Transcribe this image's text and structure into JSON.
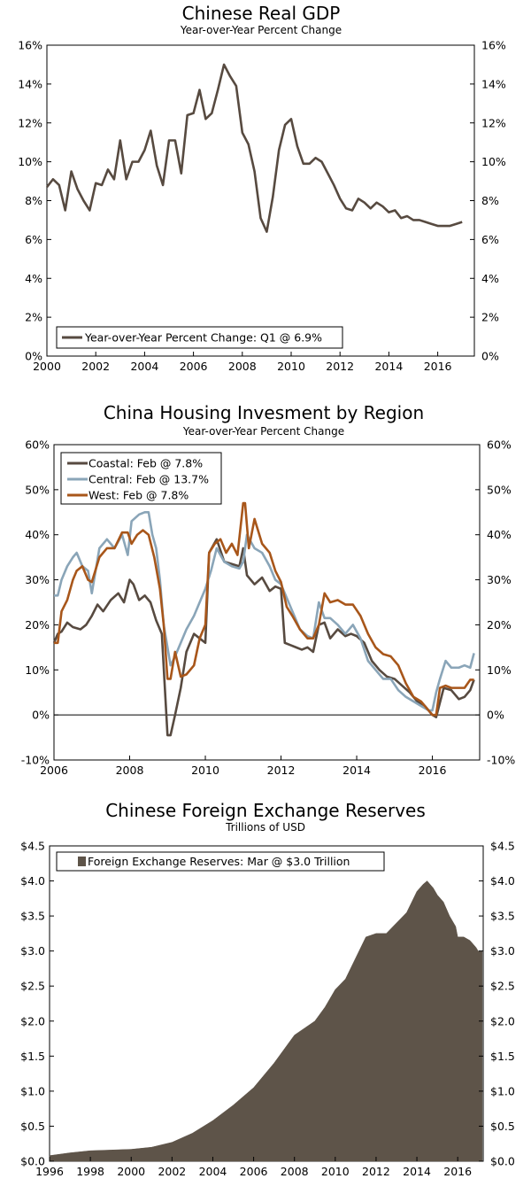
{
  "colors": {
    "coastal": "#574a40",
    "central": "#8aa5b8",
    "west": "#a8561a",
    "gdp": "#574a40",
    "reserves": "#5e5449"
  },
  "chart_data": [
    {
      "type": "line",
      "title": "Chinese Real GDP",
      "subtitle": "Year-over-Year Percent Change",
      "xlim": [
        2000,
        2017.5
      ],
      "ylim": [
        0,
        16
      ],
      "x_ticks": [
        2000,
        2002,
        2004,
        2006,
        2008,
        2010,
        2012,
        2014,
        2016
      ],
      "x_tick_labels": [
        "2000",
        "2002",
        "2004",
        "2006",
        "2008",
        "2010",
        "2012",
        "2014",
        "2016"
      ],
      "y_ticks": [
        0,
        2,
        4,
        6,
        8,
        10,
        12,
        14,
        16
      ],
      "y_tick_labels": [
        "0%",
        "2%",
        "4%",
        "6%",
        "8%",
        "10%",
        "12%",
        "14%",
        "16%"
      ],
      "legend_position": "bottom-left",
      "series": [
        {
          "name": "Year-over-Year Percent Change: Q1 @ 6.9%",
          "color_key": "gdp",
          "x": [
            2000.0,
            2000.25,
            2000.5,
            2000.75,
            2001.0,
            2001.25,
            2001.5,
            2001.75,
            2002.0,
            2002.25,
            2002.5,
            2002.75,
            2003.0,
            2003.25,
            2003.5,
            2003.75,
            2004.0,
            2004.25,
            2004.5,
            2004.75,
            2005.0,
            2005.25,
            2005.5,
            2005.75,
            2006.0,
            2006.25,
            2006.5,
            2006.75,
            2007.0,
            2007.25,
            2007.5,
            2007.75,
            2008.0,
            2008.25,
            2008.5,
            2008.75,
            2009.0,
            2009.25,
            2009.5,
            2009.75,
            2010.0,
            2010.25,
            2010.5,
            2010.75,
            2011.0,
            2011.25,
            2011.5,
            2011.75,
            2012.0,
            2012.25,
            2012.5,
            2012.75,
            2013.0,
            2013.25,
            2013.5,
            2013.75,
            2014.0,
            2014.25,
            2014.5,
            2014.75,
            2015.0,
            2015.25,
            2015.5,
            2015.75,
            2016.0,
            2016.25,
            2016.5,
            2016.75,
            2017.0
          ],
          "values": [
            8.7,
            9.1,
            8.8,
            7.5,
            9.5,
            8.6,
            8.0,
            7.5,
            8.9,
            8.8,
            9.6,
            9.1,
            11.1,
            9.1,
            10.0,
            10.0,
            10.6,
            11.6,
            9.8,
            8.8,
            11.1,
            11.1,
            9.4,
            12.4,
            12.5,
            13.7,
            12.2,
            12.5,
            13.7,
            15.0,
            14.4,
            13.9,
            11.5,
            10.9,
            9.5,
            7.1,
            6.4,
            8.2,
            10.6,
            11.9,
            12.2,
            10.8,
            9.9,
            9.9,
            10.2,
            10.0,
            9.4,
            8.8,
            8.1,
            7.6,
            7.5,
            8.1,
            7.9,
            7.6,
            7.9,
            7.7,
            7.4,
            7.5,
            7.1,
            7.2,
            7.0,
            7.0,
            6.9,
            6.8,
            6.7,
            6.7,
            6.7,
            6.8,
            6.9
          ]
        }
      ]
    },
    {
      "type": "line",
      "title": "China Housing Invesment by Region",
      "subtitle": "Year-over-Year Percent Change",
      "xlim": [
        2006,
        2017.25
      ],
      "ylim": [
        -10,
        60
      ],
      "x_ticks": [
        2006,
        2008,
        2010,
        2012,
        2014,
        2016
      ],
      "x_tick_labels": [
        "2006",
        "2008",
        "2010",
        "2012",
        "2014",
        "2016"
      ],
      "y_ticks": [
        -10,
        0,
        10,
        20,
        30,
        40,
        50,
        60
      ],
      "y_tick_labels": [
        "-10%",
        "0%",
        "10%",
        "20%",
        "30%",
        "40%",
        "50%",
        "60%"
      ],
      "legend_position": "top-left",
      "series": [
        {
          "name": "Coastal: Feb @ 7.8%",
          "color_key": "coastal",
          "x": [
            2006.0,
            2006.1,
            2006.2,
            2006.35,
            2006.5,
            2006.7,
            2006.85,
            2007.0,
            2007.15,
            2007.3,
            2007.5,
            2007.7,
            2007.85,
            2008.0,
            2008.1,
            2008.25,
            2008.4,
            2008.55,
            2008.7,
            2008.85,
            2009.0,
            2009.08,
            2009.2,
            2009.35,
            2009.5,
            2009.7,
            2009.85,
            2010.0,
            2010.1,
            2010.3,
            2010.5,
            2010.7,
            2010.9,
            2011.0,
            2011.1,
            2011.3,
            2011.5,
            2011.7,
            2011.85,
            2012.0,
            2012.1,
            2012.25,
            2012.4,
            2012.55,
            2012.7,
            2012.85,
            2013.0,
            2013.15,
            2013.3,
            2013.5,
            2013.7,
            2013.85,
            2014.0,
            2014.2,
            2014.4,
            2014.6,
            2014.8,
            2015.0,
            2015.2,
            2015.4,
            2015.6,
            2015.8,
            2016.0,
            2016.1,
            2016.3,
            2016.5,
            2016.7,
            2016.85,
            2017.0,
            2017.1
          ],
          "values": [
            16,
            18,
            18.5,
            20.5,
            19.5,
            19,
            20,
            22,
            24.5,
            23,
            25.5,
            27,
            25,
            30,
            29,
            25.5,
            26.5,
            25,
            21,
            18,
            -4.5,
            -4.5,
            0,
            6,
            14,
            18,
            17,
            16,
            36,
            39,
            34,
            33.5,
            33,
            37,
            31,
            29,
            30.5,
            27.5,
            28.5,
            28,
            16,
            15.5,
            15,
            14.5,
            15,
            14,
            20,
            20.5,
            17,
            19,
            17.5,
            18,
            17.5,
            16,
            12,
            10,
            8.5,
            8,
            6.5,
            5,
            3,
            2,
            0,
            -0.5,
            6,
            5.5,
            3.5,
            4,
            5.5,
            7.8
          ]
        },
        {
          "name": "Central: Feb @ 13.7%",
          "color_key": "central",
          "x": [
            2006.0,
            2006.1,
            2006.2,
            2006.35,
            2006.5,
            2006.6,
            2006.75,
            2006.9,
            2007.0,
            2007.2,
            2007.4,
            2007.6,
            2007.8,
            2007.95,
            2008.05,
            2008.25,
            2008.4,
            2008.5,
            2008.6,
            2008.7,
            2008.8,
            2008.9,
            2009.0,
            2009.08,
            2009.2,
            2009.35,
            2009.5,
            2009.7,
            2009.85,
            2010.0,
            2010.15,
            2010.3,
            2010.5,
            2010.7,
            2010.9,
            2011.0,
            2011.1,
            2011.3,
            2011.5,
            2011.7,
            2011.85,
            2012.0,
            2012.15,
            2012.3,
            2012.5,
            2012.7,
            2012.85,
            2013.0,
            2013.15,
            2013.3,
            2013.5,
            2013.7,
            2013.9,
            2014.1,
            2014.3,
            2014.5,
            2014.7,
            2014.9,
            2015.1,
            2015.3,
            2015.5,
            2015.7,
            2015.9,
            2016.0,
            2016.1,
            2016.2,
            2016.35,
            2016.5,
            2016.7,
            2016.85,
            2017.0,
            2017.1
          ],
          "values": [
            26.5,
            26.5,
            30,
            33,
            35,
            36,
            33,
            32,
            27,
            37,
            39,
            37,
            40,
            35.5,
            43,
            44.5,
            45,
            45,
            40,
            37,
            30,
            20,
            15,
            11,
            13,
            16,
            19,
            22,
            25,
            28,
            32,
            37,
            34,
            33,
            32.5,
            34,
            40,
            37,
            36,
            33,
            30,
            29,
            26,
            23,
            19,
            17.5,
            17,
            25,
            21.5,
            21.5,
            20,
            18,
            20,
            17,
            12,
            10,
            8,
            8,
            5.5,
            4,
            3,
            2,
            1,
            1,
            5,
            8,
            12,
            10.5,
            10.5,
            11,
            10.5,
            13.7
          ]
        },
        {
          "name": "West: Feb @ 7.8%",
          "color_key": "west",
          "x": [
            2006.0,
            2006.1,
            2006.2,
            2006.35,
            2006.5,
            2006.6,
            2006.75,
            2006.9,
            2007.0,
            2007.2,
            2007.4,
            2007.6,
            2007.8,
            2007.95,
            2008.05,
            2008.2,
            2008.35,
            2008.5,
            2008.65,
            2008.8,
            2008.9,
            2009.0,
            2009.08,
            2009.2,
            2009.35,
            2009.5,
            2009.7,
            2009.85,
            2010.0,
            2010.1,
            2010.25,
            2010.4,
            2010.55,
            2010.7,
            2010.85,
            2011.0,
            2011.05,
            2011.15,
            2011.3,
            2011.5,
            2011.7,
            2011.85,
            2012.0,
            2012.15,
            2012.3,
            2012.5,
            2012.7,
            2012.85,
            2013.0,
            2013.15,
            2013.3,
            2013.5,
            2013.7,
            2013.9,
            2014.1,
            2014.3,
            2014.5,
            2014.7,
            2014.9,
            2015.1,
            2015.3,
            2015.5,
            2015.7,
            2015.9,
            2016.0,
            2016.1,
            2016.2,
            2016.35,
            2016.5,
            2016.7,
            2016.85,
            2017.0,
            2017.1
          ],
          "values": [
            16,
            16,
            23,
            25.5,
            30,
            32,
            33,
            30,
            29.5,
            35,
            37,
            37,
            40.5,
            40.5,
            38,
            40,
            41,
            40,
            35,
            28,
            20,
            8,
            8,
            14,
            8.5,
            9,
            11,
            17,
            20,
            36,
            38,
            39,
            36,
            38,
            35.5,
            47,
            47,
            37,
            43.5,
            38,
            36,
            32,
            29.5,
            24,
            22,
            19,
            17,
            17,
            20,
            27,
            25,
            25.5,
            24.5,
            24.5,
            22,
            18,
            15,
            13.5,
            13,
            11,
            7,
            4,
            3,
            1,
            0,
            0,
            6,
            6.5,
            6,
            6,
            6,
            7.8,
            7.8
          ]
        }
      ]
    },
    {
      "type": "area",
      "title": "Chinese Foreign Exchange Reserves",
      "subtitle": "Trillions of USD",
      "xlim": [
        1996,
        2017.25
      ],
      "ylim": [
        0,
        4.5
      ],
      "x_ticks": [
        1996,
        1998,
        2000,
        2002,
        2004,
        2006,
        2008,
        2010,
        2012,
        2014,
        2016
      ],
      "x_tick_labels": [
        "1996",
        "1998",
        "2000",
        "2002",
        "2004",
        "2006",
        "2008",
        "2010",
        "2012",
        "2014",
        "2016"
      ],
      "y_ticks": [
        0,
        0.5,
        1.0,
        1.5,
        2.0,
        2.5,
        3.0,
        3.5,
        4.0,
        4.5
      ],
      "y_tick_labels": [
        "$0.0",
        "$0.5",
        "$1.0",
        "$1.5",
        "$2.0",
        "$2.5",
        "$3.0",
        "$3.5",
        "$4.0",
        "$4.5"
      ],
      "legend_position": "top-left",
      "series": [
        {
          "name": "Foreign Exchange Reserves: Mar @ $3.0 Trillion",
          "color_key": "reserves",
          "x": [
            1996.0,
            1997.0,
            1998.0,
            1999.0,
            2000.0,
            2001.0,
            2002.0,
            2003.0,
            2004.0,
            2005.0,
            2006.0,
            2007.0,
            2008.0,
            2008.5,
            2009.0,
            2009.5,
            2010.0,
            2010.5,
            2011.0,
            2011.5,
            2012.0,
            2012.5,
            2013.0,
            2013.5,
            2014.0,
            2014.3,
            2014.5,
            2014.8,
            2015.0,
            2015.3,
            2015.6,
            2015.9,
            2016.0,
            2016.3,
            2016.6,
            2016.9,
            2017.0,
            2017.2
          ],
          "values": [
            0.08,
            0.12,
            0.15,
            0.16,
            0.17,
            0.2,
            0.27,
            0.4,
            0.58,
            0.8,
            1.05,
            1.4,
            1.8,
            1.9,
            2.0,
            2.2,
            2.45,
            2.6,
            2.9,
            3.2,
            3.25,
            3.25,
            3.4,
            3.55,
            3.85,
            3.95,
            4.0,
            3.9,
            3.8,
            3.7,
            3.5,
            3.35,
            3.2,
            3.2,
            3.15,
            3.05,
            3.0,
            3.0
          ]
        }
      ]
    }
  ]
}
